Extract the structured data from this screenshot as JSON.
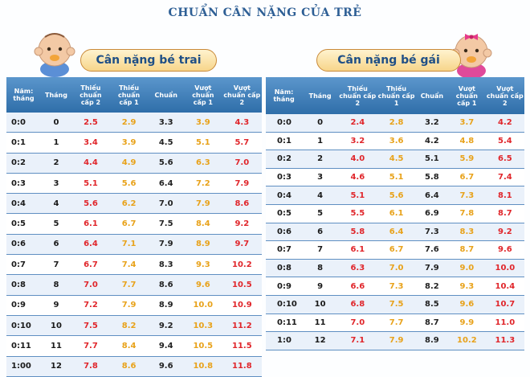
{
  "title": "CHUẨN CÂN NẶNG CỦA TRẺ",
  "boy_label": "Cân nặng bé trai",
  "girl_label": "Cân nặng bé gái",
  "headers": [
    "Năm: tháng",
    "Tháng",
    "Thiếu chuẩn cấp 2",
    "Thiếu chuẩn cấp 1",
    "Chuẩn",
    "Vượt chuẩn cấp 1",
    "Vượt chuẩn cấp 2"
  ],
  "colors": {
    "header": "#3d7fba",
    "red": "#e0262b",
    "orange": "#e8a21a",
    "title": "#2e5f95"
  },
  "boys": [
    [
      "0:0",
      "0",
      "2.5",
      "2.9",
      "3.3",
      "3.9",
      "4.3"
    ],
    [
      "0:1",
      "1",
      "3.4",
      "3.9",
      "4.5",
      "5.1",
      "5.7"
    ],
    [
      "0:2",
      "2",
      "4.4",
      "4.9",
      "5.6",
      "6.3",
      "7.0"
    ],
    [
      "0:3",
      "3",
      "5.1",
      "5.6",
      "6.4",
      "7.2",
      "7.9"
    ],
    [
      "0:4",
      "4",
      "5.6",
      "6.2",
      "7.0",
      "7.9",
      "8.6"
    ],
    [
      "0:5",
      "5",
      "6.1",
      "6.7",
      "7.5",
      "8.4",
      "9.2"
    ],
    [
      "0:6",
      "6",
      "6.4",
      "7.1",
      "7.9",
      "8.9",
      "9.7"
    ],
    [
      "0:7",
      "7",
      "6.7",
      "7.4",
      "8.3",
      "9.3",
      "10.2"
    ],
    [
      "0:8",
      "8",
      "7.0",
      "7.7",
      "8.6",
      "9.6",
      "10.5"
    ],
    [
      "0:9",
      "9",
      "7.2",
      "7.9",
      "8.9",
      "10.0",
      "10.9"
    ],
    [
      "0:10",
      "10",
      "7.5",
      "8.2",
      "9.2",
      "10.3",
      "11.2"
    ],
    [
      "0:11",
      "11",
      "7.7",
      "8.4",
      "9.4",
      "10.5",
      "11.5"
    ],
    [
      "1:00",
      "12",
      "7.8",
      "8.6",
      "9.6",
      "10.8",
      "11.8"
    ]
  ],
  "girls": [
    [
      "0:0",
      "0",
      "2.4",
      "2.8",
      "3.2",
      "3.7",
      "4.2"
    ],
    [
      "0:1",
      "1",
      "3.2",
      "3.6",
      "4.2",
      "4.8",
      "5.4"
    ],
    [
      "0:2",
      "2",
      "4.0",
      "4.5",
      "5.1",
      "5.9",
      "6.5"
    ],
    [
      "0:3",
      "3",
      "4.6",
      "5.1",
      "5.8",
      "6.7",
      "7.4"
    ],
    [
      "0:4",
      "4",
      "5.1",
      "5.6",
      "6.4",
      "7.3",
      "8.1"
    ],
    [
      "0:5",
      "5",
      "5.5",
      "6.1",
      "6.9",
      "7.8",
      "8.7"
    ],
    [
      "0:6",
      "6",
      "5.8",
      "6.4",
      "7.3",
      "8.3",
      "9.2"
    ],
    [
      "0:7",
      "7",
      "6.1",
      "6.7",
      "7.6",
      "8.7",
      "9.6"
    ],
    [
      "0:8",
      "8",
      "6.3",
      "7.0",
      "7.9",
      "9.0",
      "10.0"
    ],
    [
      "0:9",
      "9",
      "6.6",
      "7.3",
      "8.2",
      "9.3",
      "10.4"
    ],
    [
      "0:10",
      "10",
      "6.8",
      "7.5",
      "8.5",
      "9.6",
      "10.7"
    ],
    [
      "0:11",
      "11",
      "7.0",
      "7.7",
      "8.7",
      "9.9",
      "11.0"
    ],
    [
      "1:0",
      "12",
      "7.1",
      "7.9",
      "8.9",
      "10.2",
      "11.3"
    ]
  ]
}
